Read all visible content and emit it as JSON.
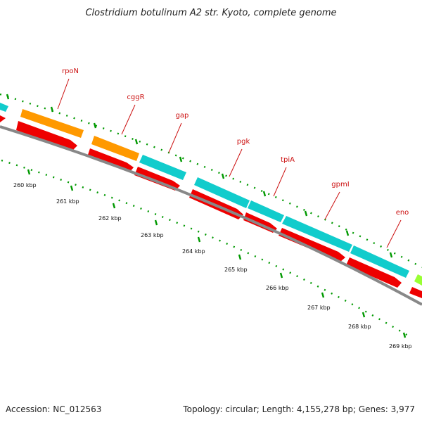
{
  "title": "Clostridium botulinum A2 str. Kyoto, complete genome",
  "footer": {
    "accession": "Accession: NC_012563",
    "stats": "Topology: circular; Length: 4,155,278 bp; Genes: 3,977"
  },
  "colors": {
    "cds": "#ee0000",
    "feature_orange": "#ff9900",
    "feature_cyan": "#11cccc",
    "feature_lime": "#99ff33",
    "backbone": "#888888",
    "tick": "#009900",
    "label": "#cc1111"
  },
  "kbp_labels": [
    "260 kbp",
    "261 kbp",
    "262 kbp",
    "263 kbp",
    "264 kbp",
    "265 kbp",
    "266 kbp",
    "267 kbp",
    "268 kbp",
    "269 kbp"
  ],
  "genes": [
    {
      "name": "rpoN",
      "type": "orange"
    },
    {
      "name": "cggR",
      "type": "orange"
    },
    {
      "name": "gap",
      "type": "cyan"
    },
    {
      "name": "pgk",
      "type": "cyan"
    },
    {
      "name": "tpiA",
      "type": "cyan"
    },
    {
      "name": "gpmI",
      "type": "cyan"
    },
    {
      "name": "eno",
      "type": "cyan"
    }
  ]
}
